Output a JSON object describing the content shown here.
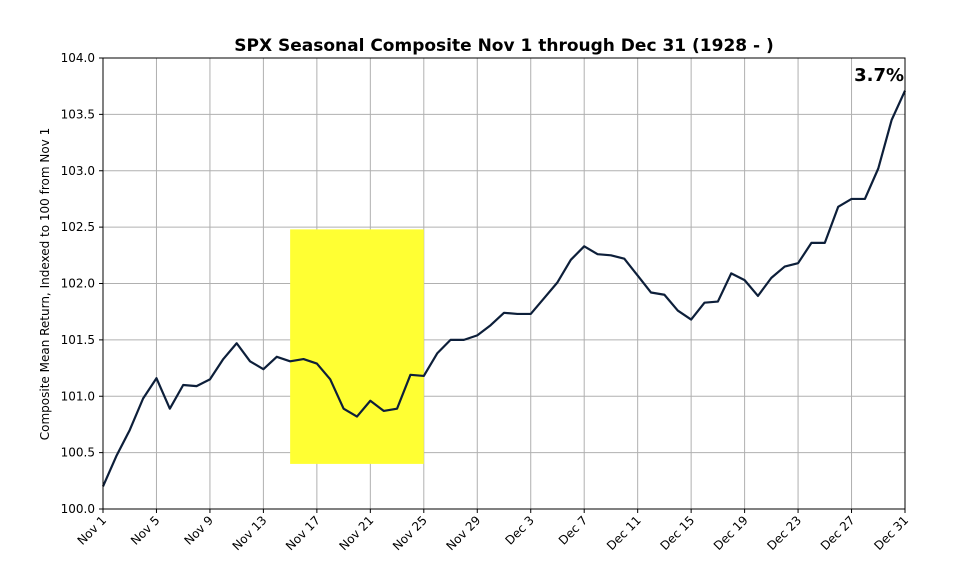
{
  "chart_data": {
    "type": "line",
    "title": "SPX Seasonal Composite Nov 1 through Dec 31 (1928 - )",
    "xlabel": "",
    "ylabel": "Composite Mean Return, Indexed to 100 from Nov 1",
    "ylim": [
      100.0,
      104.0
    ],
    "y_ticks": [
      "100.0",
      "100.5",
      "101.0",
      "101.5",
      "102.0",
      "102.5",
      "103.0",
      "103.5",
      "104.0"
    ],
    "y_tick_values": [
      100.0,
      100.5,
      101.0,
      101.5,
      102.0,
      102.5,
      103.0,
      103.5,
      104.0
    ],
    "x_ticks": [
      "Nov 1",
      "Nov 5",
      "Nov 9",
      "Nov 13",
      "Nov 17",
      "Nov 21",
      "Nov 25",
      "Nov 29",
      "Dec 3",
      "Dec 7",
      "Dec 11",
      "Dec 15",
      "Dec 19",
      "Dec 23",
      "Dec 27",
      "Dec 31"
    ],
    "x_tick_days": [
      0,
      4,
      8,
      12,
      16,
      20,
      24,
      28,
      32,
      36,
      40,
      44,
      48,
      52,
      56,
      60
    ],
    "xlim": [
      0,
      60
    ],
    "grid": true,
    "line_color": "#0d1f3a",
    "highlight": {
      "x_start_day": 14,
      "x_end_day": 24,
      "y_low": 100.4,
      "y_high": 102.48,
      "color": "#ffff33"
    },
    "annotation": {
      "text": "3.7%",
      "placement": "top-right"
    },
    "series": [
      {
        "name": "SPX Seasonal Composite",
        "x": [
          0,
          1,
          2,
          3,
          4,
          5,
          6,
          7,
          8,
          9,
          10,
          11,
          12,
          13,
          14,
          15,
          16,
          17,
          18,
          19,
          20,
          21,
          22,
          23,
          24,
          25,
          26,
          27,
          28,
          29,
          30,
          31,
          32,
          33,
          34,
          35,
          36,
          37,
          38,
          39,
          40,
          41,
          42,
          43,
          44,
          45,
          46,
          47,
          48,
          49,
          50,
          51,
          52,
          53,
          54,
          55,
          56,
          57,
          58,
          59,
          60
        ],
        "values": [
          100.2,
          100.47,
          100.7,
          100.98,
          101.16,
          100.89,
          101.1,
          101.09,
          101.15,
          101.33,
          101.47,
          101.31,
          101.24,
          101.35,
          101.31,
          101.33,
          101.29,
          101.15,
          100.89,
          100.82,
          100.96,
          100.87,
          100.89,
          101.19,
          101.18,
          101.38,
          101.5,
          101.5,
          101.54,
          101.63,
          101.74,
          101.73,
          101.73,
          101.87,
          102.01,
          102.21,
          102.33,
          102.26,
          102.25,
          102.22,
          102.07,
          101.92,
          101.9,
          101.76,
          101.68,
          101.83,
          101.84,
          102.09,
          102.03,
          101.89,
          102.05,
          102.15,
          102.18,
          102.36,
          102.36,
          102.68,
          102.75,
          102.75,
          103.02,
          103.45,
          103.71
        ]
      }
    ]
  }
}
